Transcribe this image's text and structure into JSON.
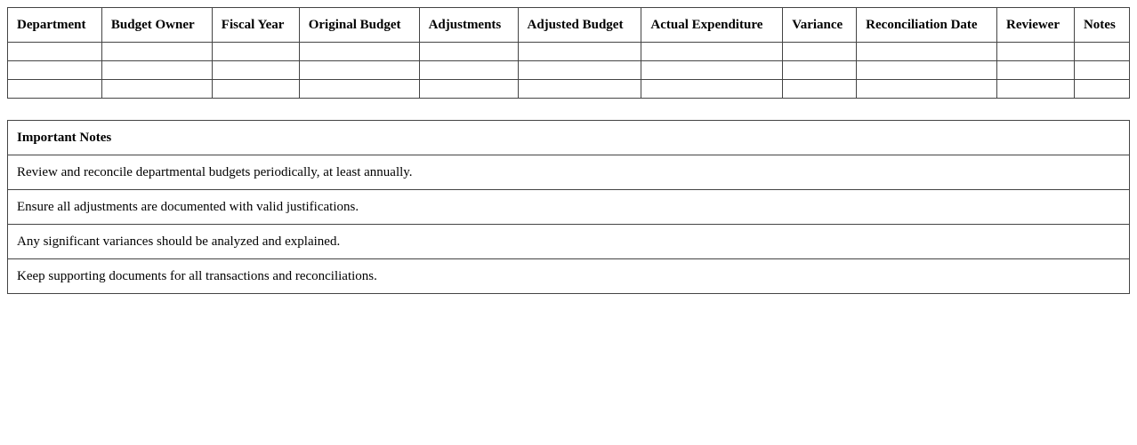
{
  "budget_table": {
    "columns": [
      "Department",
      "Budget Owner",
      "Fiscal Year",
      "Original Budget",
      "Adjustments",
      "Adjusted Budget",
      "Actual Expenditure",
      "Variance",
      "Reconciliation Date",
      "Reviewer",
      "Notes"
    ],
    "rows": [
      [
        "",
        "",
        "",
        "",
        "",
        "",
        "",
        "",
        "",
        "",
        ""
      ],
      [
        "",
        "",
        "",
        "",
        "",
        "",
        "",
        "",
        "",
        "",
        ""
      ],
      [
        "",
        "",
        "",
        "",
        "",
        "",
        "",
        "",
        "",
        "",
        ""
      ]
    ]
  },
  "notes": {
    "title": "Important Notes",
    "items": [
      "Review and reconcile departmental budgets periodically, at least annually.",
      "Ensure all adjustments are documented with valid justifications.",
      "Any significant variances should be analyzed and explained.",
      "Keep supporting documents for all transactions and reconciliations."
    ]
  }
}
